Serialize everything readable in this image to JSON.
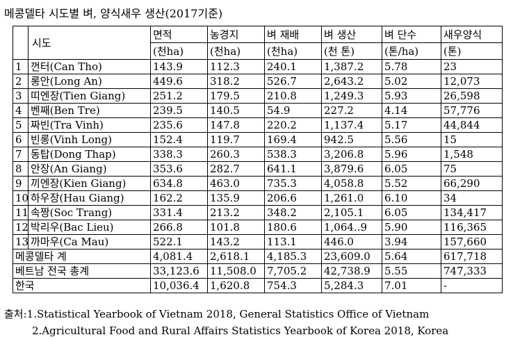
{
  "title": "메콩델타 시도별 벼, 양식새우 생산(2017기준)",
  "table": {
    "header": {
      "sido": "시도",
      "area": [
        "면적",
        "(천ha)"
      ],
      "farmland": [
        "농경지",
        "(천ha)"
      ],
      "rice_area": [
        "벼 재배",
        "(천ha)"
      ],
      "rice_prod": [
        "벼 생산",
        "(천 톤)"
      ],
      "yield": [
        "벼 단수",
        "(톤/ha)"
      ],
      "shrimp": [
        "새우양식",
        "(톤)"
      ]
    },
    "rows": [
      {
        "num": "1",
        "name": "껀터(Can Tho)",
        "area": "143.9",
        "farmland": "112.3",
        "rice_area": "240.1",
        "rice_prod": "1,387.2",
        "yield": "5.78",
        "shrimp": "23"
      },
      {
        "num": "2",
        "name": "롱안(Long An)",
        "area": "449.6",
        "farmland": "318.2",
        "rice_area": "526.7",
        "rice_prod": "2,643.2",
        "yield": "5.02",
        "shrimp": "12,073"
      },
      {
        "num": "3",
        "name": "띠엔장(Tien Giang)",
        "area": "251.2",
        "farmland": "179.5",
        "rice_area": "210.8",
        "rice_prod": "1,249.3",
        "yield": "5.93",
        "shrimp": "26,598"
      },
      {
        "num": "4",
        "name": "벤째(Ben Tre)",
        "area": "239.5",
        "farmland": "140.5",
        "rice_area": "54.9",
        "rice_prod": "227.2",
        "yield": "4.14",
        "shrimp": "57,776"
      },
      {
        "num": "5",
        "name": "짜빈(Tra Vinh)",
        "area": "235.6",
        "farmland": "147.8",
        "rice_area": "220.2",
        "rice_prod": "1,137.4",
        "yield": "5.17",
        "shrimp": "44,844"
      },
      {
        "num": "6",
        "name": "빈롱(Vinh Long)",
        "area": "152.4",
        "farmland": "119.7",
        "rice_area": "169.4",
        "rice_prod": "942.5",
        "yield": "5.56",
        "shrimp": "15"
      },
      {
        "num": "7",
        "name": "동탑(Dong Thap)",
        "area": "338.3",
        "farmland": "260.3",
        "rice_area": "538.3",
        "rice_prod": "3,206.8",
        "yield": "5.96",
        "shrimp": "1,548"
      },
      {
        "num": "8",
        "name": "안장(An Giang)",
        "area": "353.6",
        "farmland": "282.7",
        "rice_area": "641.1",
        "rice_prod": "3,879.6",
        "yield": "6.05",
        "shrimp": "75"
      },
      {
        "num": "9",
        "name": "끼엔장(Kien Giang)",
        "area": "634.8",
        "farmland": "463.0",
        "rice_area": "735.3",
        "rice_prod": "4,058.8",
        "yield": "5.52",
        "shrimp": "66,290"
      },
      {
        "num": "10",
        "name": "하우장(Hau Giang)",
        "area": "162.2",
        "farmland": "135.9",
        "rice_area": "206.6",
        "rice_prod": "1,261.0",
        "yield": "6.10",
        "shrimp": "34"
      },
      {
        "num": "11",
        "name": "속짱(Soc Trang)",
        "area": "331.4",
        "farmland": "213.2",
        "rice_area": "348.2",
        "rice_prod": "2,105.1",
        "yield": "6.05",
        "shrimp": "134,417"
      },
      {
        "num": "12",
        "name": "박리우(Bac Lieu)",
        "area": "266.8",
        "farmland": "101.8",
        "rice_area": "180.6",
        "rice_prod": "1,064..9",
        "yield": "5.90",
        "shrimp": "116,365"
      },
      {
        "num": "13",
        "name": "까마우(Ca Mau)",
        "area": "522.1",
        "farmland": "143.2",
        "rice_area": "113.1",
        "rice_prod": "446.0",
        "yield": "3.94",
        "shrimp": "157,660"
      }
    ],
    "totals": [
      {
        "name": "메콩델타 계",
        "area": "4,081.4",
        "farmland": "2,618.1",
        "rice_area": "4,185.3",
        "rice_prod": "23,609.0",
        "yield": "5.64",
        "shrimp": "617,718"
      },
      {
        "name": "베트남 전국 총계",
        "area": "33,123.6",
        "farmland": "11,508.0",
        "rice_area": "7,705.2",
        "rice_prod": "42,738.9",
        "yield": "5.55",
        "shrimp": "747,333"
      },
      {
        "name": "한국",
        "area": "10,036.4",
        "farmland": "1,620.8",
        "rice_area": "754.3",
        "rice_prod": "5,284.3",
        "yield": "7.01",
        "shrimp": "-"
      }
    ]
  },
  "source": {
    "line1": "출처:1.Statistical Yearbook of Vietnam 2018, General Statistics Office of Vietnam",
    "line2": "2.Agricultural Food and Rural Affairs Statistics Yearbook of Korea 2018, Korea"
  }
}
